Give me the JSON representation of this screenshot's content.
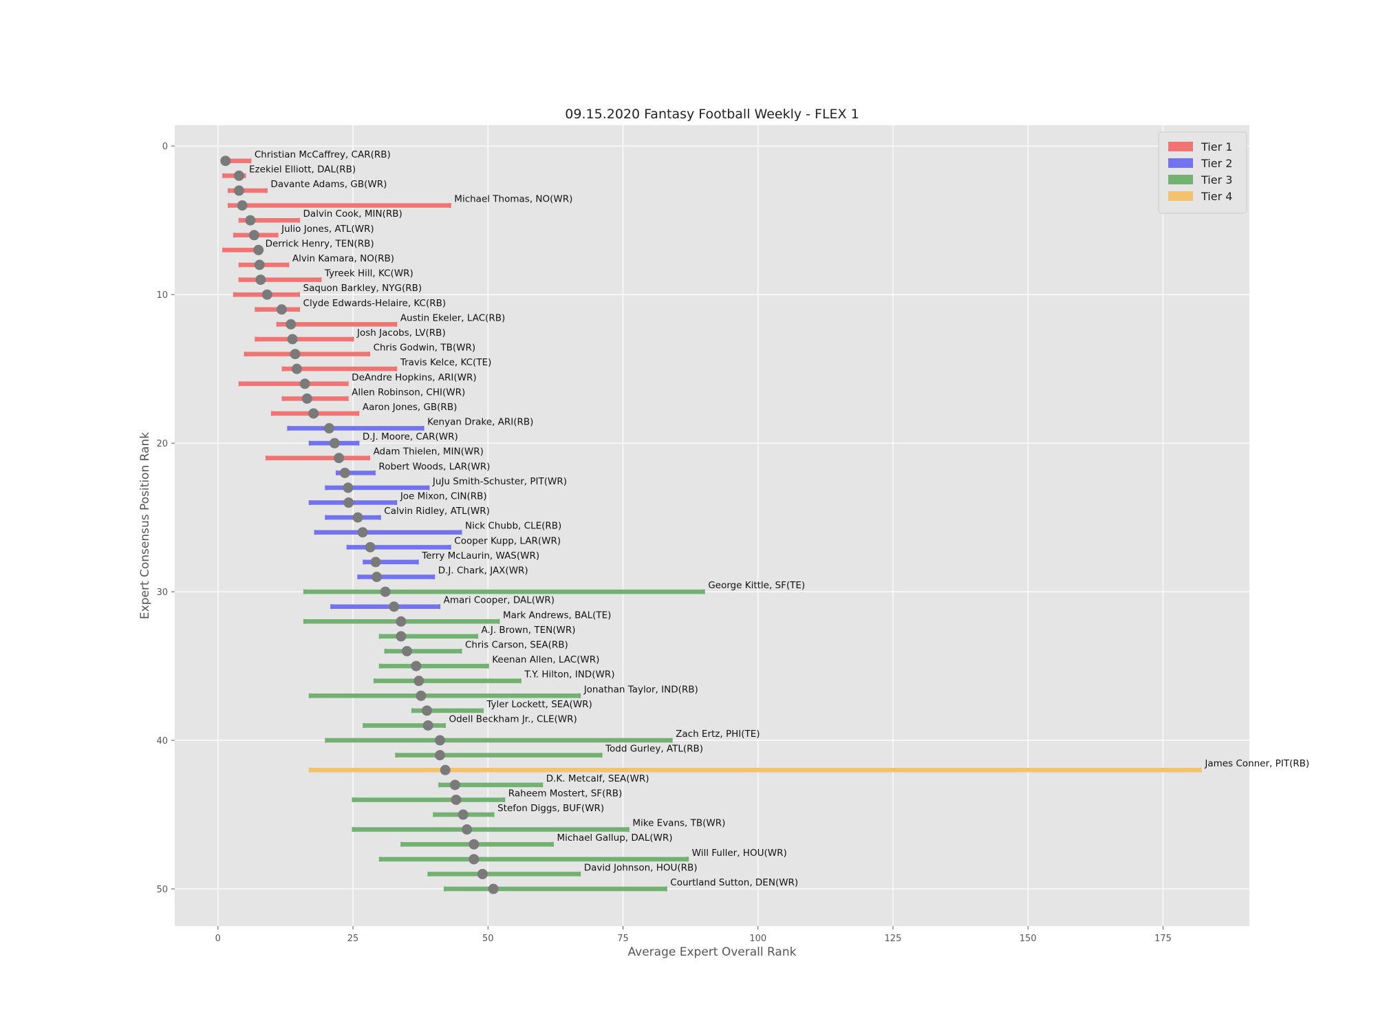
{
  "chart_data": {
    "type": "scatter",
    "title": "09.15.2020 Fantasy Football Weekly - FLEX 1",
    "xlabel": "Average Expert Overall Rank",
    "ylabel": "Expert Consensus Position Rank",
    "xlim": [
      -8,
      191
    ],
    "ylim": [
      52.5,
      -1.4
    ],
    "y_inverted": true,
    "x_ticks": [
      0,
      25,
      50,
      75,
      100,
      125,
      150,
      175
    ],
    "y_ticks": [
      0,
      10,
      20,
      30,
      40,
      50
    ],
    "grid": true,
    "legend_position": "top-right",
    "tiers": [
      {
        "name": "Tier 1",
        "color": "#f07474"
      },
      {
        "name": "Tier 2",
        "color": "#7373f0"
      },
      {
        "name": "Tier 3",
        "color": "#72b172"
      },
      {
        "name": "Tier 4",
        "color": "#f2c26e"
      }
    ],
    "marker_color": "#7a7a7a",
    "players": [
      {
        "rank": 1,
        "label": "Christian McCaffrey, CAR(RB)",
        "avg": 1.4,
        "min": 1,
        "max": 6,
        "tier": 1
      },
      {
        "rank": 2,
        "label": "Ezekiel Elliott, DAL(RB)",
        "avg": 3.9,
        "min": 1,
        "max": 5,
        "tier": 1
      },
      {
        "rank": 3,
        "label": "Davante Adams, GB(WR)",
        "avg": 3.9,
        "min": 2,
        "max": 9,
        "tier": 1
      },
      {
        "rank": 4,
        "label": "Michael Thomas, NO(WR)",
        "avg": 4.5,
        "min": 2,
        "max": 43,
        "tier": 1
      },
      {
        "rank": 5,
        "label": "Dalvin Cook, MIN(RB)",
        "avg": 6.0,
        "min": 4,
        "max": 15,
        "tier": 1
      },
      {
        "rank": 6,
        "label": "Julio Jones, ATL(WR)",
        "avg": 6.7,
        "min": 3,
        "max": 11,
        "tier": 1
      },
      {
        "rank": 7,
        "label": "Derrick Henry, TEN(RB)",
        "avg": 7.5,
        "min": 1,
        "max": 8,
        "tier": 1
      },
      {
        "rank": 8,
        "label": "Alvin Kamara, NO(RB)",
        "avg": 7.7,
        "min": 4,
        "max": 13,
        "tier": 1
      },
      {
        "rank": 9,
        "label": "Tyreek Hill, KC(WR)",
        "avg": 7.9,
        "min": 4,
        "max": 19,
        "tier": 1
      },
      {
        "rank": 10,
        "label": "Saquon Barkley, NYG(RB)",
        "avg": 9.1,
        "min": 3,
        "max": 15,
        "tier": 1
      },
      {
        "rank": 11,
        "label": "Clyde Edwards-Helaire, KC(RB)",
        "avg": 11.8,
        "min": 7,
        "max": 15,
        "tier": 1
      },
      {
        "rank": 12,
        "label": "Austin Ekeler, LAC(RB)",
        "avg": 13.5,
        "min": 11,
        "max": 33,
        "tier": 1
      },
      {
        "rank": 13,
        "label": "Josh Jacobs, LV(RB)",
        "avg": 13.8,
        "min": 7,
        "max": 25,
        "tier": 1
      },
      {
        "rank": 14,
        "label": "Chris Godwin, TB(WR)",
        "avg": 14.3,
        "min": 5,
        "max": 28,
        "tier": 1
      },
      {
        "rank": 15,
        "label": "Travis Kelce, KC(TE)",
        "avg": 14.6,
        "min": 12,
        "max": 33,
        "tier": 1
      },
      {
        "rank": 16,
        "label": "DeAndre Hopkins, ARI(WR)",
        "avg": 16.1,
        "min": 4,
        "max": 24,
        "tier": 1
      },
      {
        "rank": 17,
        "label": "Allen Robinson, CHI(WR)",
        "avg": 16.5,
        "min": 12,
        "max": 24,
        "tier": 1
      },
      {
        "rank": 18,
        "label": "Aaron Jones, GB(RB)",
        "avg": 17.7,
        "min": 10,
        "max": 26,
        "tier": 1
      },
      {
        "rank": 19,
        "label": "Kenyan Drake, ARI(RB)",
        "avg": 20.6,
        "min": 13,
        "max": 38,
        "tier": 2
      },
      {
        "rank": 20,
        "label": "D.J. Moore, CAR(WR)",
        "avg": 21.6,
        "min": 17,
        "max": 26,
        "tier": 2
      },
      {
        "rank": 21,
        "label": "Adam Thielen, MIN(WR)",
        "avg": 22.4,
        "min": 9,
        "max": 28,
        "tier": 1
      },
      {
        "rank": 22,
        "label": "Robert Woods, LAR(WR)",
        "avg": 23.5,
        "min": 22,
        "max": 29,
        "tier": 2
      },
      {
        "rank": 23,
        "label": "JuJu Smith-Schuster, PIT(WR)",
        "avg": 24.1,
        "min": 20,
        "max": 39,
        "tier": 2
      },
      {
        "rank": 24,
        "label": "Joe Mixon, CIN(RB)",
        "avg": 24.2,
        "min": 17,
        "max": 33,
        "tier": 2
      },
      {
        "rank": 25,
        "label": "Calvin Ridley, ATL(WR)",
        "avg": 25.9,
        "min": 20,
        "max": 30,
        "tier": 2
      },
      {
        "rank": 26,
        "label": "Nick Chubb, CLE(RB)",
        "avg": 26.8,
        "min": 18,
        "max": 45,
        "tier": 2
      },
      {
        "rank": 27,
        "label": "Cooper Kupp, LAR(WR)",
        "avg": 28.2,
        "min": 24,
        "max": 43,
        "tier": 2
      },
      {
        "rank": 28,
        "label": "Terry McLaurin, WAS(WR)",
        "avg": 29.2,
        "min": 27,
        "max": 37,
        "tier": 2
      },
      {
        "rank": 29,
        "label": "D.J. Chark, JAX(WR)",
        "avg": 29.4,
        "min": 26,
        "max": 40,
        "tier": 2
      },
      {
        "rank": 30,
        "label": "George Kittle, SF(TE)",
        "avg": 31.0,
        "min": 16,
        "max": 90,
        "tier": 3
      },
      {
        "rank": 31,
        "label": "Amari Cooper, DAL(WR)",
        "avg": 32.6,
        "min": 21,
        "max": 41,
        "tier": 2
      },
      {
        "rank": 32,
        "label": "Mark Andrews, BAL(TE)",
        "avg": 33.9,
        "min": 16,
        "max": 52,
        "tier": 3
      },
      {
        "rank": 33,
        "label": "A.J. Brown, TEN(WR)",
        "avg": 33.9,
        "min": 30,
        "max": 48,
        "tier": 3
      },
      {
        "rank": 34,
        "label": "Chris Carson, SEA(RB)",
        "avg": 35.0,
        "min": 31,
        "max": 45,
        "tier": 3
      },
      {
        "rank": 35,
        "label": "Keenan Allen, LAC(WR)",
        "avg": 36.7,
        "min": 30,
        "max": 50,
        "tier": 3
      },
      {
        "rank": 36,
        "label": "T.Y. Hilton, IND(WR)",
        "avg": 37.2,
        "min": 29,
        "max": 56,
        "tier": 3
      },
      {
        "rank": 37,
        "label": "Jonathan Taylor, IND(RB)",
        "avg": 37.6,
        "min": 17,
        "max": 67,
        "tier": 3
      },
      {
        "rank": 38,
        "label": "Tyler Lockett, SEA(WR)",
        "avg": 38.7,
        "min": 36,
        "max": 49,
        "tier": 3
      },
      {
        "rank": 39,
        "label": "Odell Beckham Jr., CLE(WR)",
        "avg": 38.9,
        "min": 27,
        "max": 42,
        "tier": 3
      },
      {
        "rank": 40,
        "label": "Zach Ertz, PHI(TE)",
        "avg": 41.1,
        "min": 20,
        "max": 84,
        "tier": 3
      },
      {
        "rank": 41,
        "label": "Todd Gurley, ATL(RB)",
        "avg": 41.1,
        "min": 33,
        "max": 71,
        "tier": 3
      },
      {
        "rank": 42,
        "label": "James Conner, PIT(RB)",
        "avg": 42.1,
        "min": 17,
        "max": 182,
        "tier": 4
      },
      {
        "rank": 43,
        "label": "D.K. Metcalf, SEA(WR)",
        "avg": 43.9,
        "min": 41,
        "max": 60,
        "tier": 3
      },
      {
        "rank": 44,
        "label": "Raheem Mostert, SF(RB)",
        "avg": 44.1,
        "min": 25,
        "max": 53,
        "tier": 3
      },
      {
        "rank": 45,
        "label": "Stefon Diggs, BUF(WR)",
        "avg": 45.4,
        "min": 40,
        "max": 51,
        "tier": 3
      },
      {
        "rank": 46,
        "label": "Mike Evans, TB(WR)",
        "avg": 46.1,
        "min": 25,
        "max": 76,
        "tier": 3
      },
      {
        "rank": 47,
        "label": "Michael Gallup, DAL(WR)",
        "avg": 47.4,
        "min": 34,
        "max": 62,
        "tier": 3
      },
      {
        "rank": 48,
        "label": "Will Fuller, HOU(WR)",
        "avg": 47.4,
        "min": 30,
        "max": 87,
        "tier": 3
      },
      {
        "rank": 49,
        "label": "David Johnson, HOU(RB)",
        "avg": 49.0,
        "min": 39,
        "max": 67,
        "tier": 3
      },
      {
        "rank": 50,
        "label": "Courtland Sutton, DEN(WR)",
        "avg": 51.0,
        "min": 42,
        "max": 83,
        "tier": 3
      }
    ]
  }
}
